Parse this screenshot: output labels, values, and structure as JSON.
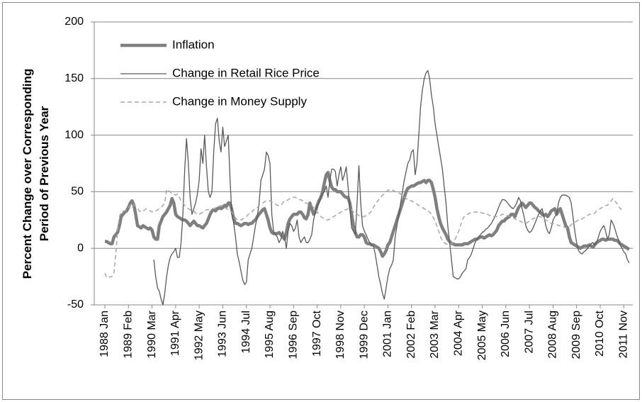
{
  "chart_data": {
    "type": "line",
    "ylabel": [
      "Percent Change over Corresponding",
      "Period of Previous Year"
    ],
    "categories": [
      "1988 Jan",
      null,
      null,
      null,
      null,
      null,
      null,
      null,
      null,
      null,
      null,
      null,
      null,
      "1989 Feb",
      null,
      null,
      null,
      null,
      null,
      null,
      null,
      null,
      null,
      null,
      null,
      null,
      "1990 Mar",
      null,
      null,
      null,
      null,
      null,
      null,
      null,
      null,
      null,
      null,
      null,
      null,
      "1991 Apr",
      null,
      null,
      null,
      null,
      null,
      null,
      null,
      null,
      null,
      null,
      null,
      null,
      "1992 May",
      null,
      null,
      null,
      null,
      null,
      null,
      null,
      null,
      null,
      null,
      null,
      null,
      "1993 Jun",
      null,
      null,
      null,
      null,
      null,
      null,
      null,
      null,
      null,
      null,
      null,
      null,
      "1994 Jul",
      null,
      null,
      null,
      null,
      null,
      null,
      null,
      null,
      null,
      null,
      null,
      null,
      "1995 Aug",
      null,
      null,
      null,
      null,
      null,
      null,
      null,
      null,
      null,
      null,
      null,
      null,
      "1996 Sep",
      null,
      null,
      null,
      null,
      null,
      null,
      null,
      null,
      null,
      null,
      null,
      null,
      "1997 Oct",
      null,
      null,
      null,
      null,
      null,
      null,
      null,
      null,
      null,
      null,
      null,
      null,
      "1998 Nov",
      null,
      null,
      null,
      null,
      null,
      null,
      null,
      null,
      null,
      null,
      null,
      null,
      "1999 Dec",
      null,
      null,
      null,
      null,
      null,
      null,
      null,
      null,
      null,
      null,
      null,
      null,
      "2001 Jan",
      null,
      null,
      null,
      null,
      null,
      null,
      null,
      null,
      null,
      null,
      null,
      null,
      "2002 Feb",
      null,
      null,
      null,
      null,
      null,
      null,
      null,
      null,
      null,
      null,
      null,
      null,
      "2003 Mar",
      null,
      null,
      null,
      null,
      null,
      null,
      null,
      null,
      null,
      null,
      null,
      null,
      "2004 Apr",
      null,
      null,
      null,
      null,
      null,
      null,
      null,
      null,
      null,
      null,
      null,
      null,
      "2005 May",
      null,
      null,
      null,
      null,
      null,
      null,
      null,
      null,
      null,
      null,
      null,
      null,
      "2006 Jun",
      null,
      null,
      null,
      null,
      null,
      null,
      null,
      null,
      null,
      null,
      null,
      null,
      "2007 Jul",
      null,
      null,
      null,
      null,
      null,
      null,
      null,
      null,
      null,
      null,
      null,
      null,
      "2008 Aug",
      null,
      null,
      null,
      null,
      null,
      null,
      null,
      null,
      null,
      null,
      null,
      null,
      "2009 Sep",
      null,
      null,
      null,
      null,
      null,
      null,
      null,
      null,
      null,
      null,
      null,
      null,
      "2010 Oct",
      null,
      null,
      null,
      null,
      null,
      null,
      null,
      null,
      null,
      null,
      null,
      null,
      "2011 Nov",
      null,
      null,
      null
    ],
    "series": [
      {
        "name": "Inflation",
        "color": "#7f7f7f",
        "width": 4.5,
        "values": [
          6,
          6,
          5,
          4,
          4,
          10,
          12,
          14,
          20,
          28,
          30,
          32,
          33,
          36,
          40,
          42,
          38,
          30,
          20,
          19,
          18,
          20,
          19,
          18,
          17,
          18,
          16,
          10,
          8,
          8,
          20,
          24,
          28,
          30,
          32,
          35,
          38,
          44,
          40,
          30,
          28,
          27,
          26,
          25,
          25,
          24,
          22,
          20,
          22,
          24,
          22,
          20,
          20,
          19,
          18,
          20,
          22,
          26,
          30,
          33,
          34,
          33,
          35,
          36,
          35,
          36,
          38,
          37,
          40,
          40,
          34,
          26,
          22,
          22,
          21,
          20,
          21,
          22,
          22,
          21,
          22,
          22,
          24,
          25,
          28,
          30,
          32,
          34,
          35,
          30,
          25,
          18,
          14,
          13,
          13,
          13,
          14,
          12,
          10,
          8,
          14,
          22,
          26,
          28,
          30,
          30,
          30,
          32,
          32,
          30,
          27,
          26,
          30,
          40,
          35,
          30,
          32,
          38,
          42,
          45,
          50,
          58,
          65,
          67,
          60,
          54,
          52,
          52,
          50,
          50,
          50,
          48,
          46,
          45,
          45,
          40,
          30,
          20,
          14,
          10,
          10,
          12,
          12,
          10,
          5,
          4,
          4,
          3,
          3,
          2,
          1,
          0,
          -3,
          -7,
          -5,
          -2,
          3,
          5,
          10,
          15,
          20,
          25,
          30,
          35,
          40,
          45,
          50,
          53,
          54,
          55,
          55,
          56,
          57,
          58,
          58,
          59,
          60,
          58,
          60,
          60,
          58,
          52,
          45,
          35,
          28,
          22,
          18,
          15,
          12,
          8,
          6,
          4,
          4,
          3,
          3,
          3,
          3,
          3,
          4,
          4,
          4,
          5,
          6,
          7,
          8,
          8,
          9,
          10,
          10,
          9,
          10,
          11,
          12,
          11,
          12,
          14,
          16,
          20,
          22,
          24,
          24,
          26,
          27,
          28,
          30,
          30,
          28,
          32,
          36,
          38,
          40,
          38,
          36,
          38,
          40,
          40,
          38,
          36,
          35,
          33,
          32,
          30,
          29,
          30,
          28,
          30,
          33,
          34,
          35,
          30,
          33,
          35,
          30,
          25,
          20,
          18,
          10,
          5,
          4,
          3,
          2,
          1,
          0,
          1,
          2,
          2,
          2,
          3,
          2,
          1,
          3,
          5,
          6,
          7,
          8,
          8,
          7,
          8,
          8,
          8,
          8,
          7,
          7,
          6,
          4,
          3,
          2,
          1,
          0,
          -1
        ]
      },
      {
        "name": "Change in Retail Rice Price",
        "color": "#595959",
        "width": 1.3,
        "values": [
          null,
          null,
          null,
          null,
          null,
          null,
          null,
          null,
          null,
          null,
          null,
          null,
          null,
          null,
          null,
          null,
          null,
          null,
          null,
          null,
          null,
          null,
          null,
          null,
          null,
          null,
          null,
          -10,
          -25,
          -35,
          -38,
          -45,
          -50,
          -40,
          -25,
          -15,
          -8,
          -5,
          -3,
          0,
          -8,
          -8,
          5,
          30,
          70,
          97,
          75,
          45,
          30,
          35,
          40,
          48,
          60,
          88,
          75,
          100,
          72,
          50,
          45,
          50,
          85,
          110,
          115,
          95,
          85,
          107,
          90,
          95,
          100,
          60,
          30,
          22,
          10,
          -5,
          -12,
          -20,
          -28,
          -32,
          -30,
          -10,
          -5,
          0,
          10,
          20,
          28,
          40,
          60,
          65,
          70,
          85,
          82,
          75,
          30,
          15,
          12,
          10,
          5,
          8,
          15,
          10,
          0,
          15,
          22,
          20,
          15,
          18,
          25,
          10,
          5,
          8,
          10,
          5,
          5,
          8,
          12,
          25,
          32,
          38,
          40,
          45,
          48,
          50,
          55,
          45,
          60,
          70,
          70,
          68,
          55,
          65,
          72,
          60,
          65,
          72,
          55,
          35,
          18,
          15,
          12,
          40,
          73,
          40,
          20,
          15,
          12,
          8,
          5,
          3,
          2,
          -5,
          -15,
          -25,
          -32,
          -40,
          -45,
          -35,
          -25,
          -18,
          -15,
          -10,
          10,
          20,
          30,
          40,
          50,
          60,
          68,
          75,
          78,
          85,
          87,
          65,
          75,
          100,
          125,
          140,
          150,
          155,
          157,
          150,
          135,
          125,
          110,
          100,
          90,
          80,
          70,
          55,
          40,
          20,
          5,
          -10,
          -25,
          -26,
          -27,
          -27,
          -25,
          -22,
          -20,
          -18,
          -10,
          -8,
          -5,
          0,
          5,
          8,
          10,
          12,
          14,
          15,
          17,
          18,
          20,
          22,
          25,
          28,
          32,
          36,
          40,
          43,
          43,
          42,
          40,
          38,
          36,
          35,
          37,
          40,
          45,
          42,
          35,
          28,
          20,
          16,
          14,
          15,
          18,
          22,
          26,
          30,
          33,
          35,
          28,
          20,
          15,
          13,
          18,
          25,
          28,
          30,
          40,
          45,
          47,
          47,
          47,
          46,
          45,
          40,
          28,
          15,
          5,
          -2,
          -4,
          -5,
          -3,
          -2,
          0,
          2,
          4,
          5,
          3,
          5,
          10,
          15,
          18,
          20,
          15,
          8,
          12,
          25,
          22,
          18,
          12,
          8,
          3,
          0,
          -3,
          -5,
          -10,
          -13
        ]
      },
      {
        "name": "Change in Money Supply",
        "color": "#a6a6a6",
        "width": 1.5,
        "dashed": true,
        "values": [
          -22,
          -26,
          -26,
          -25,
          -25,
          -22,
          -5,
          15,
          28,
          32,
          33,
          33,
          35,
          36,
          38,
          40,
          38,
          37,
          35,
          33,
          32,
          33,
          34,
          35,
          34,
          33,
          32,
          32,
          33,
          34,
          35,
          36,
          38,
          40,
          52,
          51,
          50,
          48,
          48,
          47,
          48,
          45,
          42,
          40,
          38,
          36,
          35,
          34,
          33,
          33,
          31,
          30,
          30,
          31,
          32,
          33,
          34,
          34,
          35,
          35,
          35,
          36,
          37,
          37,
          38,
          37,
          36,
          35,
          34,
          33,
          32,
          29,
          27,
          25,
          25,
          25,
          26,
          27,
          28,
          30,
          31,
          32,
          34,
          35,
          36,
          38,
          39,
          40,
          41,
          42,
          42,
          42,
          41,
          40,
          39,
          38,
          38,
          38,
          40,
          42,
          42,
          43,
          44,
          45,
          45,
          45,
          44,
          43,
          43,
          42,
          40,
          40,
          39,
          38,
          38,
          36,
          34,
          32,
          30,
          28,
          27,
          26,
          25,
          25,
          26,
          27,
          28,
          29,
          30,
          31,
          32,
          33,
          34,
          34,
          35,
          35,
          34,
          32,
          30,
          30,
          29,
          28,
          28,
          28,
          29,
          30,
          31,
          33,
          36,
          39,
          41,
          43,
          45,
          47,
          48,
          50,
          51,
          52,
          52,
          51,
          50,
          50,
          49,
          48,
          47,
          45,
          44,
          43,
          42,
          42,
          41,
          40,
          39,
          38,
          37,
          36,
          35,
          34,
          33,
          32,
          30,
          27,
          24,
          20,
          15,
          10,
          7,
          5,
          4,
          3,
          3,
          4,
          5,
          8,
          11,
          15,
          20,
          25,
          28,
          29,
          30,
          31,
          32,
          32,
          32,
          32,
          32,
          32,
          31,
          31,
          30,
          30,
          29,
          29,
          28,
          28,
          28,
          28,
          29,
          30,
          30,
          29,
          29,
          28,
          28,
          27,
          26,
          25,
          24,
          24,
          23,
          22,
          22,
          23,
          24,
          25,
          26,
          27,
          28,
          28,
          28,
          27,
          26,
          25,
          24,
          23,
          22,
          22,
          21,
          21,
          20,
          20,
          19,
          19,
          18,
          18,
          19,
          21,
          22,
          23,
          24,
          25,
          25,
          26,
          27,
          28,
          29,
          30,
          30,
          31,
          31,
          33,
          34,
          35,
          36,
          37,
          38,
          38,
          40,
          42,
          44,
          42,
          40,
          38,
          35,
          34,
          33,
          null,
          null,
          null
        ]
      }
    ],
    "ylim": [
      -50,
      200
    ],
    "yticks": [
      -50,
      0,
      50,
      100,
      150,
      200
    ],
    "grid": true,
    "legend": "upper left"
  }
}
